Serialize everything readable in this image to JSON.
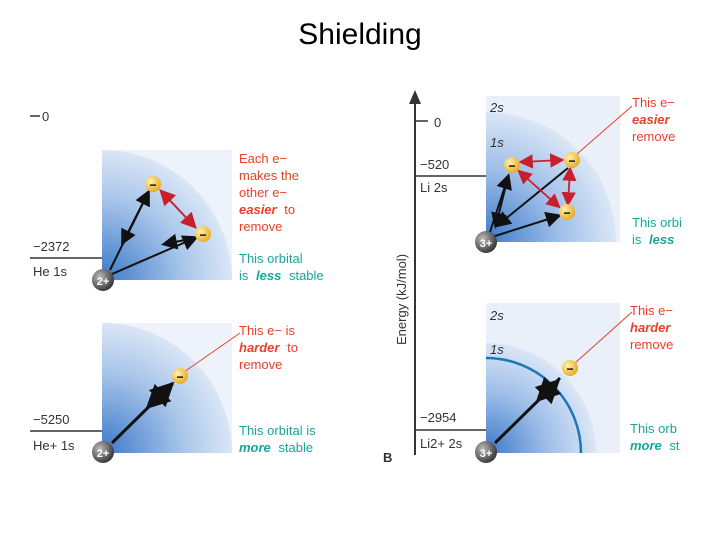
{
  "title": "Shielding",
  "colors": {
    "red_text": "#e8402a",
    "green_text": "#1aa59a",
    "orbital_blue": "#3a78c9",
    "electron_yellow": "#f3c23a"
  },
  "left": {
    "axis_zero": "0",
    "panel_top": {
      "energy": "−2372",
      "orbital": "He 1s",
      "nucleus": "2+",
      "electron": "−",
      "note_red": [
        "Each e−",
        "makes the",
        "other e−",
        "easier",
        "to",
        "remove"
      ],
      "note_green": [
        "This orbital",
        "is",
        "less",
        "stable"
      ]
    },
    "panel_bottom": {
      "energy": "−5250",
      "orbital": "He+ 1s",
      "nucleus": "2+",
      "electron": "−",
      "note_red": [
        "This e− is",
        "harder",
        "to",
        "remove"
      ],
      "note_green": [
        "This orbital is",
        "more",
        "stable"
      ]
    }
  },
  "right": {
    "axis_label": "Energy (kJ/mol)",
    "axis_zero": "0",
    "panel_label": "B",
    "panel_top": {
      "energy": "−520",
      "orbital": "Li 2s",
      "shell_outer": "2s",
      "shell_inner": "1s",
      "nucleus": "3+",
      "electron": "−",
      "note_red": [
        "This e−",
        "easier",
        "remove"
      ],
      "note_green": [
        "This orbi",
        "is",
        "less"
      ]
    },
    "panel_bottom": {
      "energy": "−2954",
      "orbital": "Li2+ 2s",
      "shell_outer": "2s",
      "shell_inner": "1s",
      "nucleus": "3+",
      "electron": "−",
      "note_red": [
        "This e−",
        "harder",
        "remove"
      ],
      "note_green": [
        "This orb",
        "more",
        "st"
      ]
    }
  }
}
